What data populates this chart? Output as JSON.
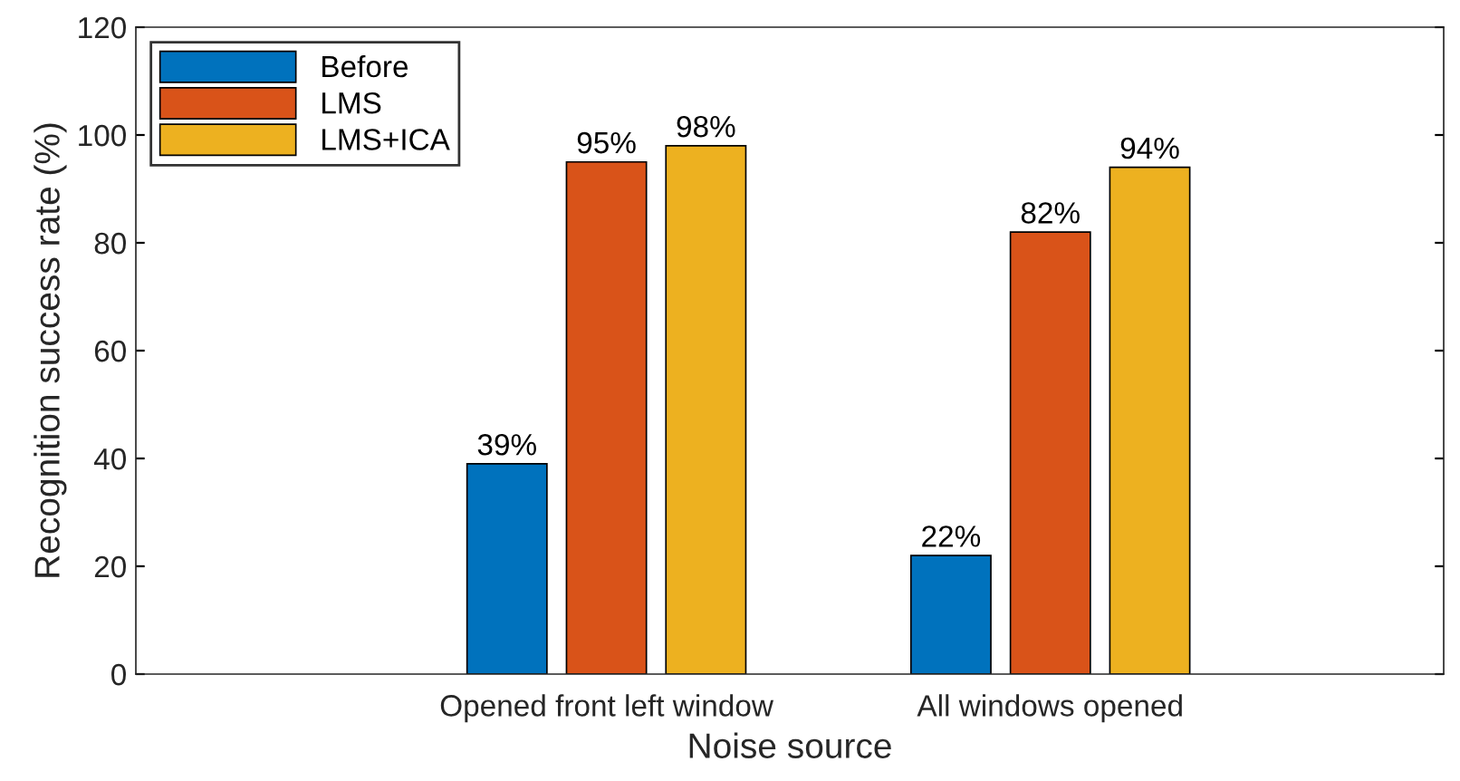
{
  "chart_data": {
    "type": "bar",
    "xlabel": "Noise source",
    "ylabel": "Recognition success rate (%)",
    "categories": [
      "Opened front left window",
      "All windows opened"
    ],
    "series": [
      {
        "name": "Before",
        "color": "#0072bd",
        "values": [
          39,
          22
        ],
        "value_labels": [
          "39%",
          "22%"
        ]
      },
      {
        "name": "LMS",
        "color": "#d95319",
        "values": [
          95,
          82
        ],
        "value_labels": [
          "95%",
          "82%"
        ]
      },
      {
        "name": "LMS+ICA",
        "color": "#edb120",
        "values": [
          98,
          94
        ],
        "value_labels": [
          "98%",
          "94%"
        ]
      }
    ],
    "ylim": [
      0,
      120
    ],
    "yticks": [
      0,
      20,
      40,
      60,
      80,
      100,
      120
    ],
    "grid": false,
    "legend": "top left"
  }
}
